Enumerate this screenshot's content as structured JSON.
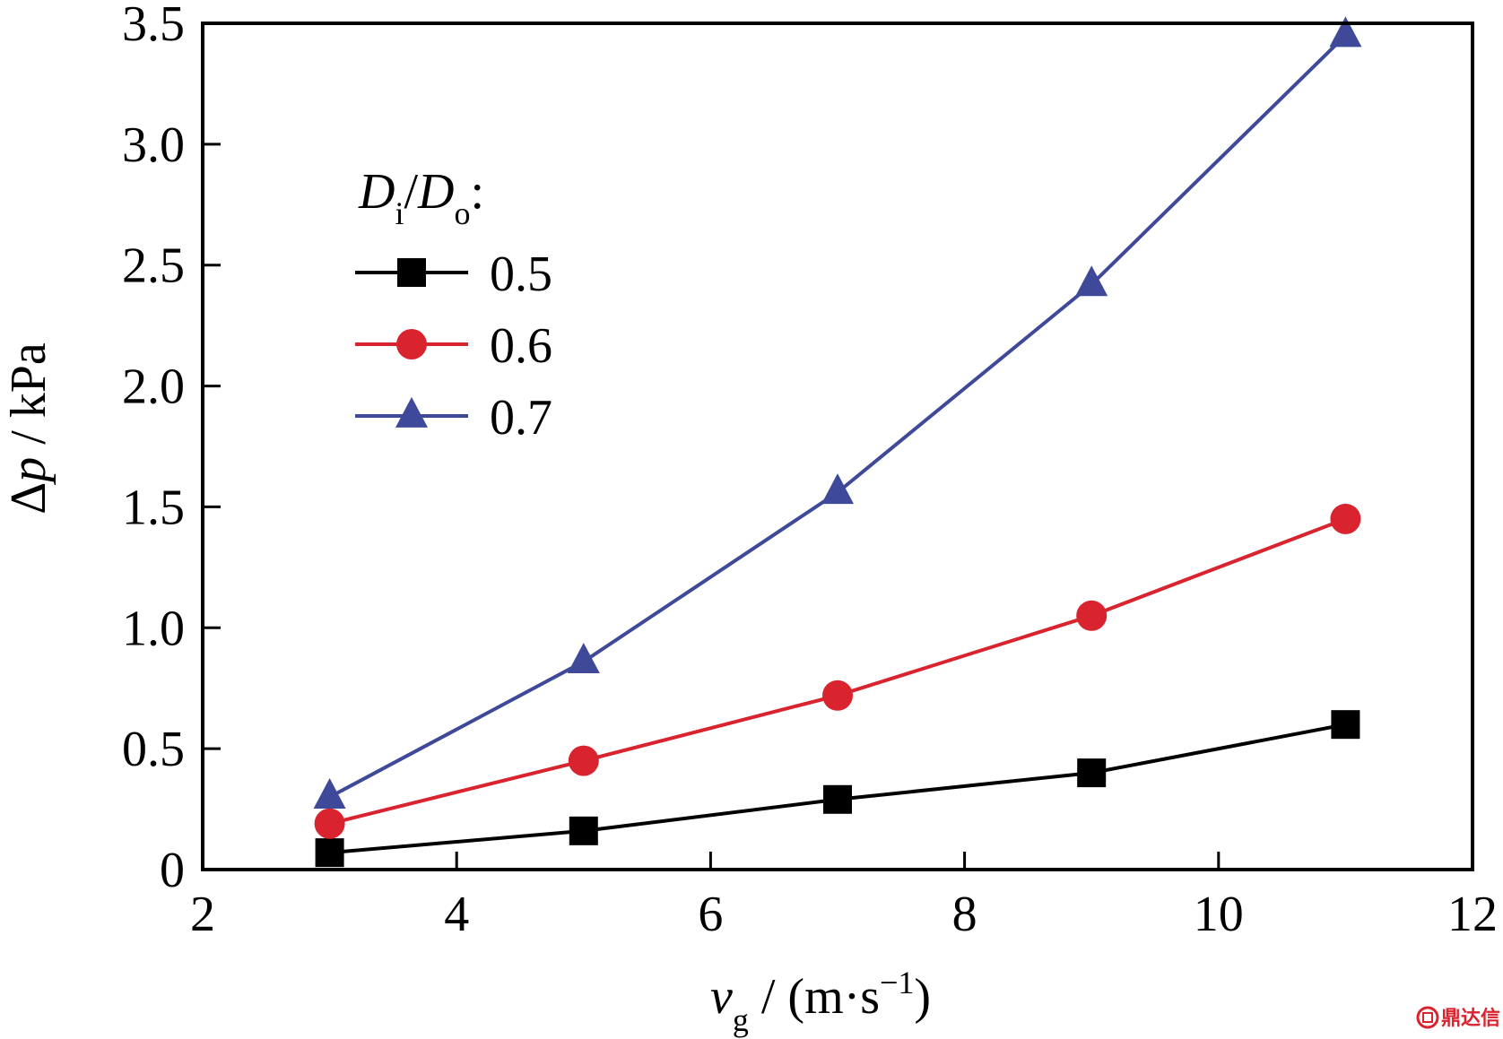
{
  "chart_data": {
    "type": "line",
    "title": "",
    "xlabel": {
      "main": "v",
      "sub": "g",
      "unit_prefix": " / (m·s",
      "unit_sup": "−1",
      "unit_suffix": ")"
    },
    "ylabel": {
      "delta": "Δ",
      "var": "p",
      "unit": " / kPa"
    },
    "xlim": [
      2,
      12
    ],
    "ylim": [
      0,
      3.5
    ],
    "x_ticks": [
      2,
      4,
      6,
      8,
      10,
      12
    ],
    "x_tick_labels": [
      "2",
      "4",
      "6",
      "8",
      "10",
      "12"
    ],
    "y_ticks": [
      0,
      0.5,
      1.0,
      1.5,
      2.0,
      2.5,
      3.0,
      3.5
    ],
    "y_tick_labels": [
      "0",
      "0.5",
      "1.0",
      "1.5",
      "2.0",
      "2.5",
      "3.0",
      "3.5"
    ],
    "grid": false,
    "legend_placement": "upper-left",
    "legend_title": {
      "d1": "D",
      "sub1": "i",
      "slash": "/",
      "d2": "D",
      "sub2": "o",
      "colon": ":"
    },
    "x": [
      3,
      5,
      7,
      9,
      11
    ],
    "series": [
      {
        "name": "0.5",
        "marker": "square",
        "color": "#000000",
        "values": [
          0.07,
          0.16,
          0.29,
          0.4,
          0.6
        ]
      },
      {
        "name": "0.6",
        "marker": "circle",
        "color": "#d9232e",
        "values": [
          0.19,
          0.45,
          0.72,
          1.05,
          1.45
        ]
      },
      {
        "name": "0.7",
        "marker": "triangle",
        "color": "#3e4a99",
        "values": [
          0.3,
          0.86,
          1.56,
          2.42,
          3.45
        ]
      }
    ]
  },
  "watermark": {
    "text": "鼎达信",
    "icon": "logo-icon"
  }
}
